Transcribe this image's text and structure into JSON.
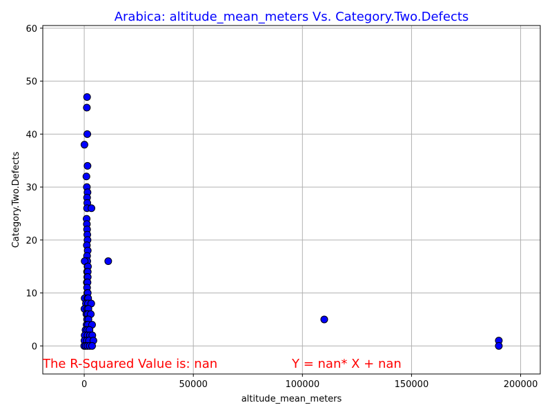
{
  "chart_data": {
    "type": "scatter",
    "title": "Arabica: altitude_mean_meters Vs. Category.Two.Defects",
    "xlabel": "altitude_mean_meters",
    "ylabel": "Category.Two.Defects",
    "xlim": [
      -19000,
      209000
    ],
    "ylim": [
      -5.3,
      60.5
    ],
    "xticks": [
      0,
      50000,
      100000,
      150000,
      200000
    ],
    "yticks": [
      0,
      10,
      20,
      30,
      40,
      50,
      60
    ],
    "grid": true,
    "colors": {
      "title": "#0000ff",
      "marker_fill": "#0000ff",
      "marker_edge": "#000000",
      "annotation": "#ff0000",
      "grid": "#b0b0b0"
    },
    "points": [
      [
        1300,
        47
      ],
      [
        1200,
        45
      ],
      [
        1400,
        40
      ],
      [
        100,
        38
      ],
      [
        1500,
        34
      ],
      [
        1000,
        32
      ],
      [
        1200,
        30
      ],
      [
        1500,
        29
      ],
      [
        1300,
        28
      ],
      [
        1400,
        27
      ],
      [
        1300,
        26
      ],
      [
        3300,
        26
      ],
      [
        1100,
        24
      ],
      [
        1200,
        23
      ],
      [
        1300,
        22
      ],
      [
        1400,
        21
      ],
      [
        1500,
        20
      ],
      [
        1200,
        19
      ],
      [
        1600,
        18
      ],
      [
        1300,
        17
      ],
      [
        1400,
        16
      ],
      [
        200,
        16
      ],
      [
        1500,
        15
      ],
      [
        1700,
        15
      ],
      [
        1300,
        14
      ],
      [
        1600,
        14
      ],
      [
        1400,
        13
      ],
      [
        1600,
        13
      ],
      [
        1200,
        12
      ],
      [
        1500,
        12
      ],
      [
        1300,
        11
      ],
      [
        1400,
        10
      ],
      [
        1600,
        10
      ],
      [
        200,
        9
      ],
      [
        1500,
        9
      ],
      [
        1800,
        9
      ],
      [
        800,
        8
      ],
      [
        1700,
        8
      ],
      [
        3200,
        8
      ],
      [
        100,
        7
      ],
      [
        1400,
        7
      ],
      [
        1900,
        7
      ],
      [
        1000,
        6
      ],
      [
        1600,
        6
      ],
      [
        3000,
        6
      ],
      [
        1300,
        5
      ],
      [
        1900,
        5
      ],
      [
        1100,
        4
      ],
      [
        1700,
        4
      ],
      [
        3600,
        4
      ],
      [
        600,
        3
      ],
      [
        1400,
        3
      ],
      [
        2400,
        3
      ],
      [
        200,
        2
      ],
      [
        1500,
        2
      ],
      [
        2600,
        2
      ],
      [
        3700,
        2
      ],
      [
        100,
        1
      ],
      [
        1200,
        1
      ],
      [
        2200,
        1
      ],
      [
        4200,
        1
      ],
      [
        0,
        0
      ],
      [
        700,
        0
      ],
      [
        1500,
        0
      ],
      [
        2500,
        0
      ],
      [
        3600,
        0
      ],
      [
        11000,
        16
      ],
      [
        110000,
        5
      ],
      [
        190000,
        1
      ],
      [
        190000,
        0
      ]
    ],
    "annotations": {
      "r_squared": "The R-Squared Value is: nan",
      "equation": "Y = nan* X + nan"
    }
  }
}
